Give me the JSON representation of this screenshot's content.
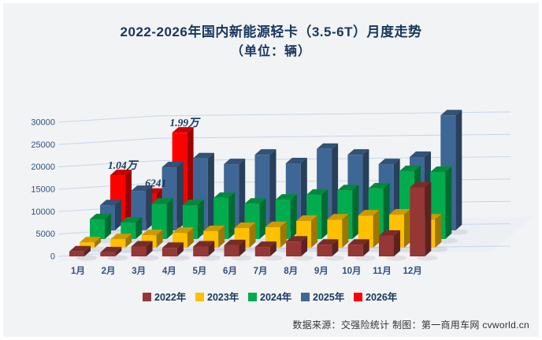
{
  "page": {
    "background": "#F2F3F4",
    "title_color": "#17375E",
    "grid_color": "#C7D6EA"
  },
  "chart_data": {
    "type": "bar",
    "style": "3d-column",
    "title": "2022-2026年国内新能源轻卡（3.5-6T）月度走势",
    "subtitle": "（单位：辆）",
    "unit": "辆",
    "categories": [
      "1月",
      "2月",
      "3月",
      "4月",
      "5月",
      "6月",
      "7月",
      "8月",
      "9月",
      "10月",
      "11月",
      "12月"
    ],
    "y_ticks": [
      0,
      5000,
      10000,
      15000,
      20000,
      25000,
      30000
    ],
    "ylim": [
      0,
      30000
    ],
    "grid": true,
    "legend_position": "bottom",
    "series": [
      {
        "name": "2022年",
        "color": "#953735",
        "values": [
          1100,
          900,
          2200,
          1900,
          2200,
          2500,
          2100,
          3300,
          2600,
          2600,
          4600,
          15400
        ]
      },
      {
        "name": "2023年",
        "color": "#FFC000",
        "values": [
          1200,
          1900,
          2800,
          3300,
          3700,
          4400,
          4600,
          6000,
          6300,
          7200,
          7400,
          6300
        ]
      },
      {
        "name": "2024年",
        "color": "#00AC4E",
        "values": [
          4400,
          3700,
          7900,
          7600,
          9200,
          7900,
          8800,
          9900,
          10900,
          11300,
          15200,
          15000
        ]
      },
      {
        "name": "2025年",
        "color": "#3F6795",
        "values": [
          5600,
          8800,
          14100,
          16100,
          14800,
          16900,
          15000,
          18200,
          16900,
          14800,
          16400,
          25700
        ]
      },
      {
        "name": "2026年",
        "color": "#FF0000",
        "values": [
          10400,
          6241,
          19900,
          null,
          null,
          null,
          null,
          null,
          null,
          null,
          null,
          null
        ]
      }
    ],
    "annotations": [
      {
        "text": "1.04万",
        "series": "2026年",
        "month": "1月",
        "value": 10400
      },
      {
        "text": "6241",
        "series": "2026年",
        "month": "2月",
        "value": 6241
      },
      {
        "text": "1.99万",
        "series": "2026年",
        "month": "3月",
        "value": 19900
      }
    ]
  },
  "footer": {
    "source": "数据来源：交强险统计 制图：第一商用车网 cvworld.cn"
  }
}
